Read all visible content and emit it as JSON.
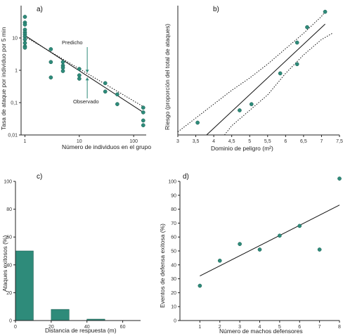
{
  "colors": {
    "marker": "#2e8b7a",
    "marker_edge": "#1d5f53",
    "bar": "#2e8b7a",
    "axis": "#222222",
    "line": "#111111"
  },
  "chart_data": [
    {
      "id": "a",
      "panel_label": "a)",
      "type": "scatter",
      "xscale": "log",
      "yscale": "log",
      "xlim": [
        0.85,
        170
      ],
      "ylim": [
        0.01,
        100
      ],
      "xticks": [
        1,
        10,
        100
      ],
      "xtick_labels": [
        "1",
        "10",
        "100"
      ],
      "yticks": [
        0.01,
        0.1,
        1,
        10
      ],
      "ytick_labels": [
        "0,01",
        "0,1",
        "1",
        "10"
      ],
      "xlabel": "Número de individuos en el grupo",
      "ylabel": "Tasa de ataque por individuo por 5 min",
      "points": [
        [
          1,
          45
        ],
        [
          1,
          30
        ],
        [
          1,
          26
        ],
        [
          1,
          18
        ],
        [
          1,
          15
        ],
        [
          1,
          13
        ],
        [
          1,
          11
        ],
        [
          1,
          9
        ],
        [
          1,
          7
        ],
        [
          1,
          5.5
        ],
        [
          1,
          5
        ],
        [
          3,
          4.5
        ],
        [
          3,
          1.8
        ],
        [
          3,
          0.6
        ],
        [
          5,
          1.8
        ],
        [
          5,
          1.4
        ],
        [
          5,
          1.2
        ],
        [
          5,
          0.95
        ],
        [
          10,
          1.1
        ],
        [
          10,
          0.7
        ],
        [
          10,
          0.55
        ],
        [
          30,
          0.4
        ],
        [
          30,
          0.22
        ],
        [
          50,
          0.18
        ],
        [
          50,
          0.09
        ],
        [
          150,
          0.07
        ],
        [
          150,
          0.05
        ],
        [
          150,
          0.028
        ],
        [
          150,
          0.02
        ]
      ],
      "lines": [
        {
          "name": "Observado",
          "style": "solid",
          "x": [
            1,
            150
          ],
          "y": [
            12,
            0.05
          ]
        },
        {
          "name": "Predicho",
          "style": "dotted",
          "x": [
            1,
            150
          ],
          "y": [
            11,
            0.075
          ]
        }
      ],
      "annotations": [
        {
          "text": "Predicho",
          "x": 12,
          "y": 3.0,
          "arrow_to": [
            14,
            0.85
          ]
        },
        {
          "text": "Observado",
          "x": 14,
          "y": 0.22,
          "arrow_to": [
            14,
            0.6
          ]
        }
      ]
    },
    {
      "id": "b",
      "panel_label": "b)",
      "type": "scatter",
      "xlim": [
        3,
        7.5
      ],
      "ylim": [
        0,
        0.42
      ],
      "xticks": [
        3,
        3.5,
        4,
        4.5,
        5,
        5.5,
        6,
        6.5,
        7,
        7.5
      ],
      "xtick_labels": [
        "3",
        "3,5",
        "4",
        "4,5",
        "5",
        "5,5",
        "6",
        "6,5",
        "7",
        "7,5"
      ],
      "xlabel": "Dominio de peligro (m²)",
      "ylabel": "Riesgo (proporción del total de ataques)",
      "points": [
        [
          3.55,
          0.04
        ],
        [
          4.72,
          0.08
        ],
        [
          5.05,
          0.1
        ],
        [
          5.85,
          0.2
        ],
        [
          6.32,
          0.3
        ],
        [
          6.32,
          0.23
        ],
        [
          6.6,
          0.35
        ],
        [
          7.1,
          0.4
        ]
      ],
      "lines": [
        {
          "name": "fit",
          "style": "solid",
          "x": [
            3.8,
            7.1
          ],
          "y": [
            0.0,
            0.36
          ]
        },
        {
          "name": "ci-upper",
          "style": "dotted",
          "x": [
            3.0,
            3.5,
            4.0,
            4.5,
            5.0,
            5.5,
            6.0,
            6.5,
            7.0,
            7.1
          ],
          "y": [
            0.01,
            0.055,
            0.1,
            0.145,
            0.185,
            0.23,
            0.28,
            0.33,
            0.385,
            0.4
          ]
        },
        {
          "name": "ci-lower",
          "style": "dotted",
          "x": [
            4.3,
            4.5,
            5.0,
            5.5,
            6.0,
            6.5,
            7.0,
            7.3
          ],
          "y": [
            0.0,
            0.03,
            0.08,
            0.13,
            0.2,
            0.26,
            0.31,
            0.33
          ]
        }
      ]
    },
    {
      "id": "c",
      "panel_label": "c)",
      "type": "bar",
      "xlim": [
        0,
        70
      ],
      "ylim": [
        0,
        100
      ],
      "xticks": [
        0,
        20,
        40,
        60
      ],
      "xtick_labels": [
        "0",
        "20",
        "40",
        "60"
      ],
      "yticks": [
        0,
        20,
        40,
        60,
        80,
        100
      ],
      "ytick_labels": [
        "0",
        "20",
        "40",
        "60",
        "80",
        "100"
      ],
      "xlabel": "Distancia de respuesta (m)",
      "ylabel": "Ataques exitosos (%)",
      "bins": [
        [
          0,
          10
        ],
        [
          20,
          30
        ],
        [
          40,
          50
        ]
      ],
      "values": [
        50,
        8,
        1
      ]
    },
    {
      "id": "d",
      "panel_label": "d)",
      "type": "scatter",
      "xlim": [
        0,
        8
      ],
      "ylim": [
        0,
        100
      ],
      "xticks": [
        1,
        2,
        3,
        4,
        5,
        6,
        7,
        8
      ],
      "xtick_labels": [
        "1",
        "2",
        "3",
        "4",
        "5",
        "6",
        "7",
        "8"
      ],
      "yticks": [
        0,
        10,
        20,
        30,
        40,
        50,
        60,
        70,
        80,
        90,
        100
      ],
      "ytick_labels": [
        "0",
        "10",
        "20",
        "30",
        "40",
        "50",
        "60",
        "70",
        "80",
        "90",
        "100"
      ],
      "xlabel": "Número de machos defensores",
      "ylabel": "Eventos de defensa exitosa (%)",
      "points": [
        [
          1,
          25
        ],
        [
          2,
          43
        ],
        [
          3,
          55
        ],
        [
          4,
          51
        ],
        [
          5,
          61
        ],
        [
          6,
          68
        ],
        [
          7,
          51
        ],
        [
          8,
          102
        ]
      ],
      "lines": [
        {
          "name": "fit",
          "style": "solid",
          "x": [
            1,
            8
          ],
          "y": [
            32,
            83
          ]
        }
      ]
    }
  ]
}
